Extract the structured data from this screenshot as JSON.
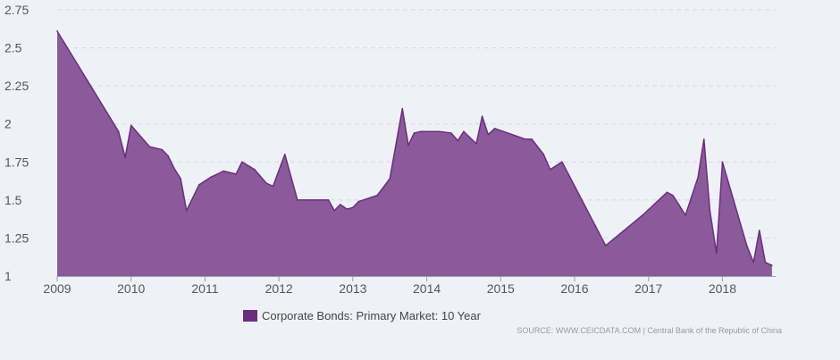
{
  "chart_data": {
    "type": "area",
    "title": "",
    "xlabel": "",
    "ylabel": "",
    "xlim": [
      2009.0,
      2018.72
    ],
    "ylim": [
      1,
      2.75
    ],
    "x_ticks": [
      2009,
      2010,
      2011,
      2012,
      2013,
      2014,
      2015,
      2016,
      2017,
      2018
    ],
    "x_tick_labels": [
      "2009",
      "2010",
      "2011",
      "2012",
      "2013",
      "2014",
      "2015",
      "2016",
      "2017",
      "2018"
    ],
    "y_ticks": [
      1,
      1.25,
      1.5,
      1.75,
      2,
      2.25,
      2.5,
      2.75
    ],
    "y_tick_labels": [
      "1",
      "1.25",
      "1.5",
      "1.75",
      "2",
      "2.25",
      "2.5",
      "2.75"
    ],
    "grid": "horizontal dashed",
    "legend_position": "bottom-center",
    "series": [
      {
        "name": "Corporate Bonds: Primary Market: 10 Year",
        "color": "#8b5a9b",
        "line_color": "#6b2d7e",
        "points": [
          [
            2009.0,
            2.61
          ],
          [
            2009.83,
            1.95
          ],
          [
            2009.92,
            1.78
          ],
          [
            2010.0,
            1.99
          ],
          [
            2010.25,
            1.85
          ],
          [
            2010.42,
            1.83
          ],
          [
            2010.5,
            1.79
          ],
          [
            2010.58,
            1.71
          ],
          [
            2010.67,
            1.64
          ],
          [
            2010.75,
            1.43
          ],
          [
            2010.92,
            1.6
          ],
          [
            2011.08,
            1.65
          ],
          [
            2011.25,
            1.69
          ],
          [
            2011.42,
            1.67
          ],
          [
            2011.5,
            1.75
          ],
          [
            2011.67,
            1.7
          ],
          [
            2011.83,
            1.61
          ],
          [
            2011.92,
            1.59
          ],
          [
            2012.08,
            1.8
          ],
          [
            2012.25,
            1.5
          ],
          [
            2012.5,
            1.5
          ],
          [
            2012.67,
            1.5
          ],
          [
            2012.75,
            1.43
          ],
          [
            2012.83,
            1.47
          ],
          [
            2012.92,
            1.44
          ],
          [
            2013.0,
            1.45
          ],
          [
            2013.08,
            1.49
          ],
          [
            2013.33,
            1.53
          ],
          [
            2013.5,
            1.64
          ],
          [
            2013.67,
            2.1
          ],
          [
            2013.75,
            1.86
          ],
          [
            2013.83,
            1.94
          ],
          [
            2013.92,
            1.95
          ],
          [
            2014.17,
            1.95
          ],
          [
            2014.33,
            1.94
          ],
          [
            2014.42,
            1.89
          ],
          [
            2014.5,
            1.95
          ],
          [
            2014.67,
            1.87
          ],
          [
            2014.75,
            2.05
          ],
          [
            2014.83,
            1.93
          ],
          [
            2014.92,
            1.97
          ],
          [
            2015.33,
            1.9
          ],
          [
            2015.42,
            1.9
          ],
          [
            2015.58,
            1.8
          ],
          [
            2015.67,
            1.7
          ],
          [
            2015.83,
            1.75
          ],
          [
            2016.42,
            1.2
          ],
          [
            2016.92,
            1.4
          ],
          [
            2017.25,
            1.55
          ],
          [
            2017.33,
            1.53
          ],
          [
            2017.5,
            1.4
          ],
          [
            2017.67,
            1.65
          ],
          [
            2017.75,
            1.9
          ],
          [
            2017.83,
            1.43
          ],
          [
            2017.92,
            1.15
          ],
          [
            2018.0,
            1.75
          ],
          [
            2018.33,
            1.2
          ],
          [
            2018.42,
            1.09
          ],
          [
            2018.5,
            1.3
          ],
          [
            2018.58,
            1.09
          ],
          [
            2018.67,
            1.07
          ]
        ]
      }
    ],
    "source_note": "SOURCE: WWW.CEICDATA.COM | Central Bank of the Republic of China"
  }
}
